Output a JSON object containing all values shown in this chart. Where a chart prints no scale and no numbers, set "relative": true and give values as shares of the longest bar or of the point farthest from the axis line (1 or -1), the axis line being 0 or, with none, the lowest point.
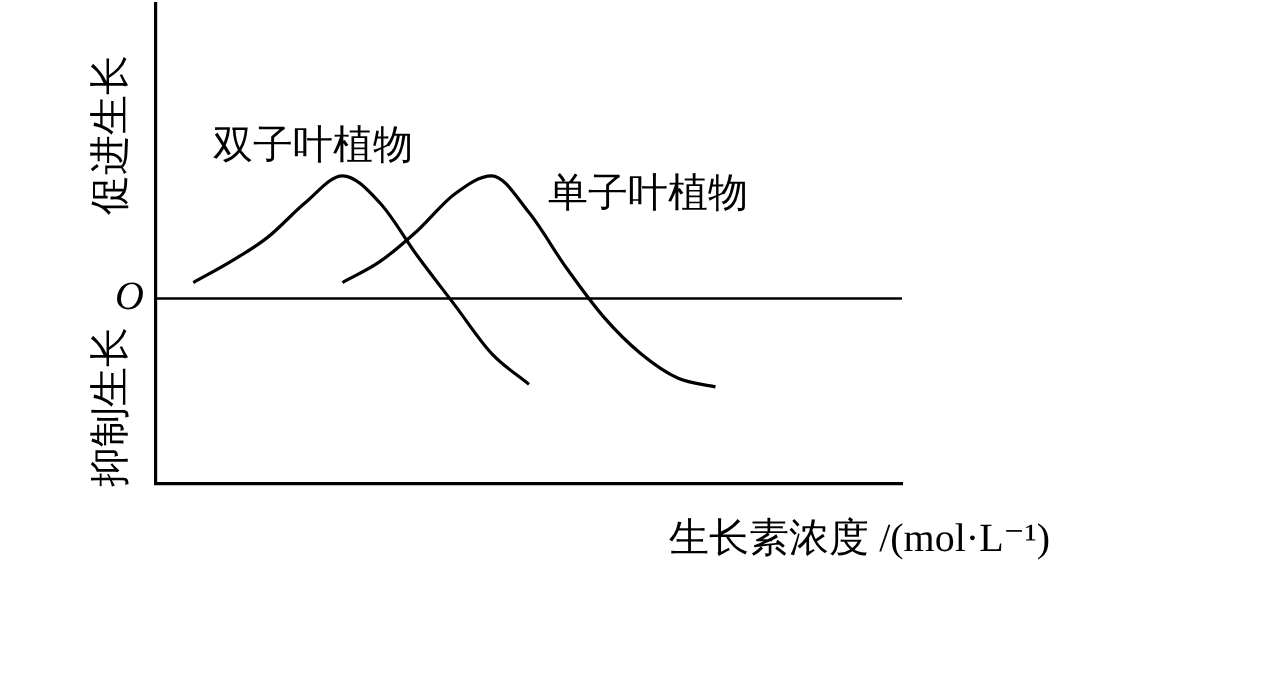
{
  "chart_data": {
    "type": "line",
    "relative": true,
    "xlabel": "生长素浓度 /(mol·L⁻¹)",
    "categories": [
      null,
      null,
      null,
      null,
      null,
      null,
      null,
      null,
      null,
      null,
      null,
      null,
      null,
      null,
      null,
      null,
      null,
      null,
      null,
      null,
      null
    ],
    "series": [
      {
        "name": "双子叶植物",
        "color": "#000000",
        "values": [
          null,
          0.13,
          0.3,
          0.5,
          0.78,
          1,
          0.78,
          0.35,
          -0.05,
          -0.45,
          -0.7,
          null,
          null,
          null,
          null,
          null,
          null,
          null,
          null,
          null,
          null
        ]
      },
      {
        "name": "单子叶植物",
        "color": "#000000",
        "values": [
          null,
          null,
          null,
          null,
          null,
          0.13,
          0.3,
          0.55,
          0.85,
          1,
          0.7,
          0.25,
          -0.15,
          -0.45,
          -0.65,
          -0.72,
          null,
          null,
          null,
          null,
          null
        ]
      }
    ],
    "ref_lines": [
      {
        "axis": "y",
        "value": 0,
        "label": "O",
        "color": "#000000"
      }
    ],
    "annotations": [
      "促进生长",
      "抑制生长"
    ],
    "legend": false,
    "grid": false,
    "marker": "none",
    "line_style": "solid"
  }
}
